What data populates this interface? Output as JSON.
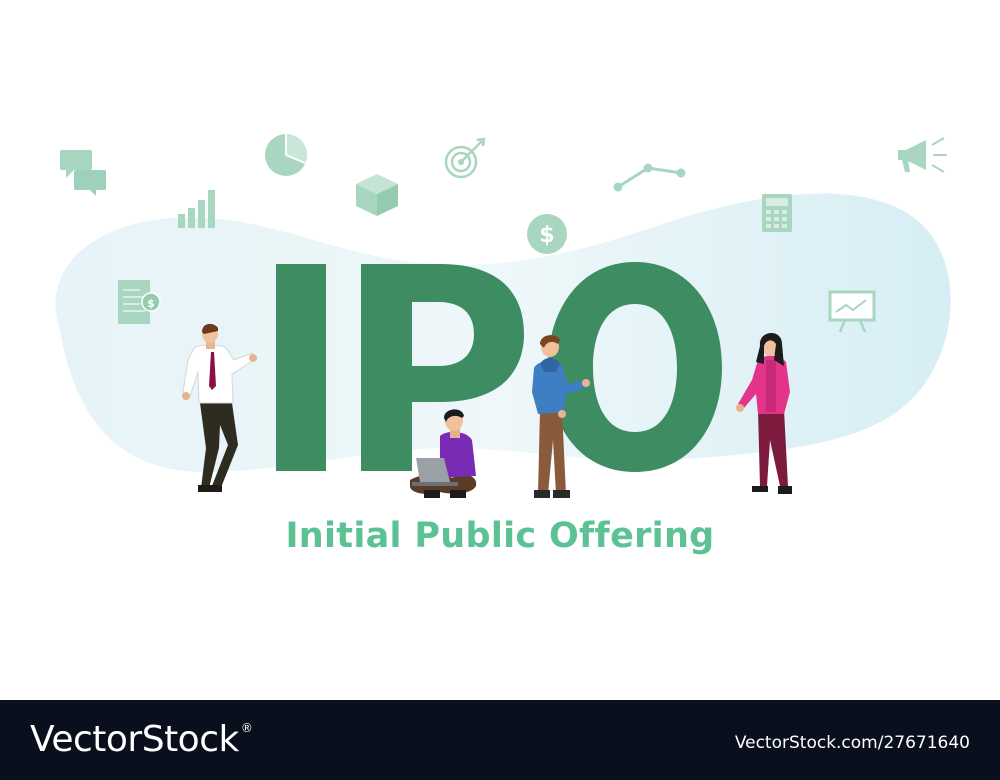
{
  "headline": "IPO",
  "tagline": "Initial Public Offering",
  "footer": {
    "brand": "VectorStock",
    "trademark": "®",
    "image_id": "VectorStock.com/27671640"
  },
  "icons": [
    "chat-bubbles-icon",
    "bar-chart-icon",
    "pie-chart-icon",
    "cube-icon",
    "target-icon",
    "dollar-coin-icon",
    "line-graph-icon",
    "calculator-icon",
    "megaphone-icon",
    "invoice-icon",
    "presentation-board-icon"
  ],
  "people": [
    "businessman",
    "seated-laptop-user",
    "man-in-hoodie",
    "woman-in-pink"
  ],
  "colors": {
    "letters": "#3d8c62",
    "tagline": "#5cc294",
    "icons": "#a8d6c0",
    "blob": "#dff0f5",
    "footer": "#0a0f1e"
  }
}
